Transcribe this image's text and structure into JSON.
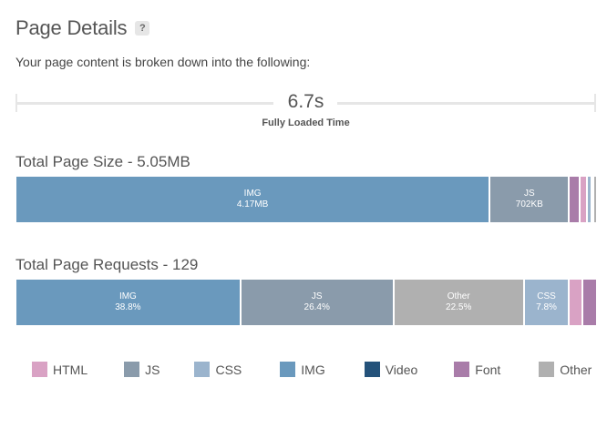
{
  "header": {
    "title": "Page Details",
    "help": "?"
  },
  "subtitle": "Your page content is broken down into the following:",
  "fully_loaded": {
    "value": "6.7s",
    "label": "Fully Loaded Time"
  },
  "page_size": {
    "title": "Total Page Size - 5.05MB",
    "segments": [
      {
        "key": "img",
        "label": "IMG",
        "value": "4.17MB",
        "share": 0.818
      },
      {
        "key": "js",
        "label": "JS",
        "value": "702KB",
        "share": 0.137
      },
      {
        "key": "font",
        "label": "",
        "value": "",
        "share": 0.018
      },
      {
        "key": "html",
        "label": "",
        "value": "",
        "share": 0.013
      },
      {
        "key": "css",
        "label": "",
        "value": "",
        "share": 0.007
      },
      {
        "key": "img",
        "label": "",
        "value": "",
        "share": 0.004
      },
      {
        "key": "other",
        "label": "",
        "value": "",
        "share": 0.003
      }
    ]
  },
  "page_requests": {
    "title": "Total Page Requests - 129",
    "segments": [
      {
        "key": "img",
        "label": "IMG",
        "value": "38.8%",
        "share": 0.388
      },
      {
        "key": "js",
        "label": "JS",
        "value": "26.4%",
        "share": 0.264
      },
      {
        "key": "other",
        "label": "Other",
        "value": "22.5%",
        "share": 0.225
      },
      {
        "key": "css",
        "label": "CSS",
        "value": "7.8%",
        "share": 0.078
      },
      {
        "key": "html",
        "label": "",
        "value": "",
        "share": 0.023
      },
      {
        "key": "font",
        "label": "",
        "value": "",
        "share": 0.022
      }
    ]
  },
  "legend": [
    {
      "key": "html",
      "label": "HTML"
    },
    {
      "key": "js",
      "label": "JS"
    },
    {
      "key": "css",
      "label": "CSS"
    },
    {
      "key": "img",
      "label": "IMG"
    },
    {
      "key": "video",
      "label": "Video"
    },
    {
      "key": "font",
      "label": "Font"
    },
    {
      "key": "other",
      "label": "Other"
    }
  ],
  "colors": {
    "html": "#d9a2c4",
    "js": "#8a9bab",
    "css": "#9bb4cd",
    "img": "#6a99bd",
    "video": "#24527a",
    "font": "#a97ca9",
    "other": "#b0b0b0"
  }
}
